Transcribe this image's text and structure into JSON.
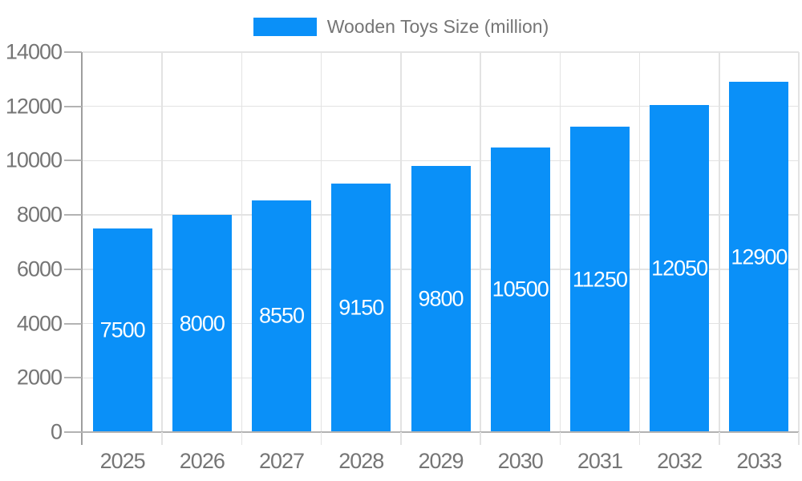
{
  "colors": {
    "bar": "#0a90f8",
    "grid": "#e3e3e3",
    "baseline": "#b3b3b3",
    "axis": "#9e9e9e",
    "text": "#757575",
    "value_text": "#ffffff",
    "background": "#ffffff"
  },
  "legend": {
    "label": "Wooden Toys Size (million)",
    "position": "top"
  },
  "chart_data": {
    "type": "bar",
    "title": "Wooden Toys Size (million)",
    "categories": [
      "2025",
      "2026",
      "2027",
      "2028",
      "2029",
      "2030",
      "2031",
      "2032",
      "2033"
    ],
    "series": [
      {
        "name": "Wooden Toys Size (million)",
        "values": [
          7500,
          8000,
          8550,
          9150,
          9800,
          10500,
          11250,
          12050,
          12900
        ]
      }
    ],
    "value_labels": [
      "7500",
      "8000",
      "8550",
      "9150",
      "9800",
      "10500",
      "11250",
      "12050",
      "12900"
    ],
    "value_label_position": "inside-center",
    "xlabel": "",
    "ylabel": "",
    "ylim": [
      0,
      14000
    ],
    "ytick_step": 2000,
    "yticks": [
      "0",
      "2000",
      "4000",
      "6000",
      "8000",
      "10000",
      "12000",
      "14000"
    ],
    "grid": true,
    "legend_position": "top"
  }
}
